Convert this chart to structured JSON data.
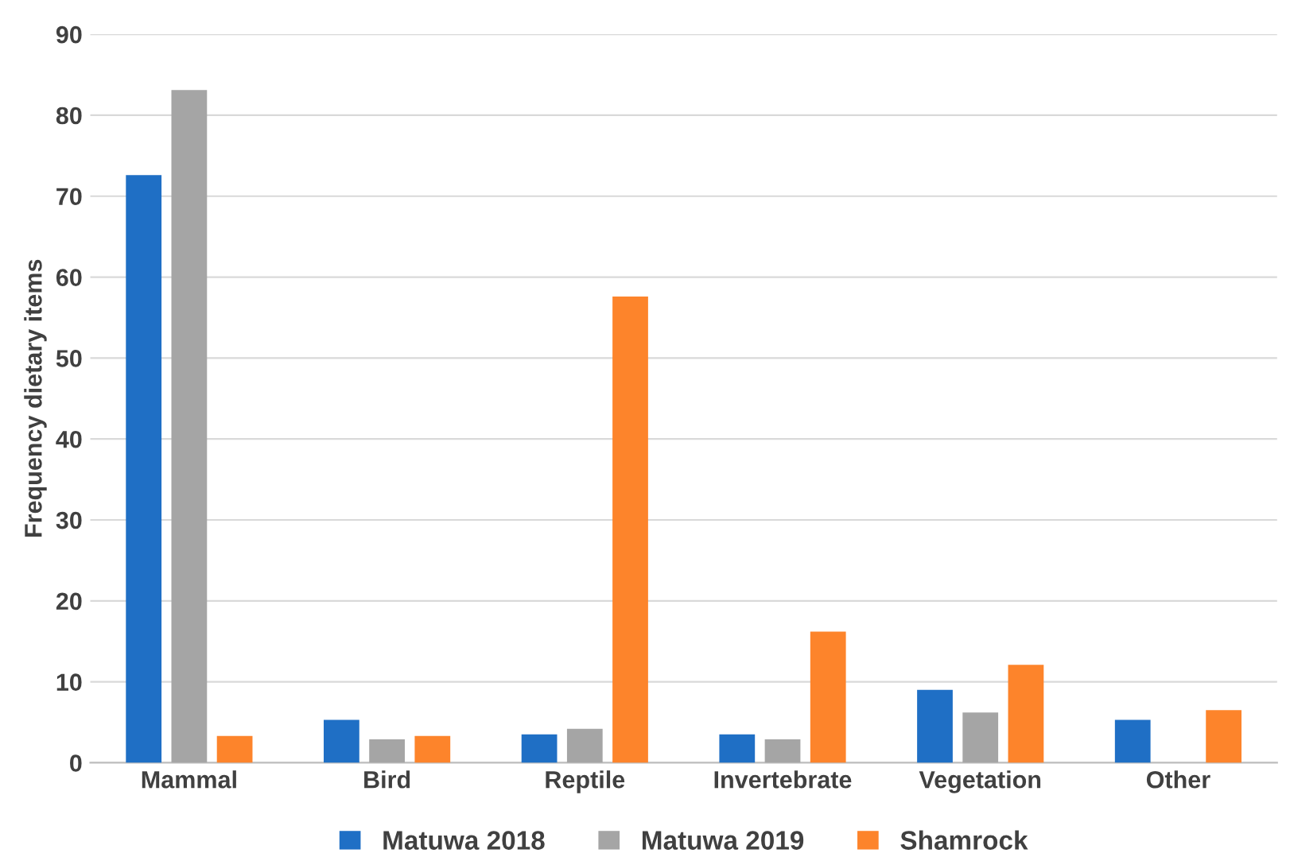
{
  "chart_data": {
    "type": "bar",
    "ylabel": "Frequency dietary items",
    "categories": [
      "Mammal",
      "Bird",
      "Reptile",
      "Invertebrate",
      "Vegetation",
      "Other"
    ],
    "series": [
      {
        "name": "Matuwa 2018",
        "color": "#1f6fc5",
        "values": [
          72.6,
          5.3,
          3.5,
          3.5,
          9.0,
          5.3
        ]
      },
      {
        "name": "Matuwa 2019",
        "color": "#a5a5a5",
        "values": [
          83.1,
          2.9,
          4.2,
          2.9,
          6.2,
          0
        ]
      },
      {
        "name": "Shamrock",
        "color": "#fd842b",
        "values": [
          3.3,
          3.3,
          57.6,
          16.2,
          12.1,
          6.5
        ]
      }
    ],
    "ylim": [
      0,
      90
    ],
    "yticks": [
      0,
      10,
      20,
      30,
      40,
      50,
      60,
      70,
      80,
      90
    ],
    "grid": "y",
    "legend": "bottom"
  }
}
